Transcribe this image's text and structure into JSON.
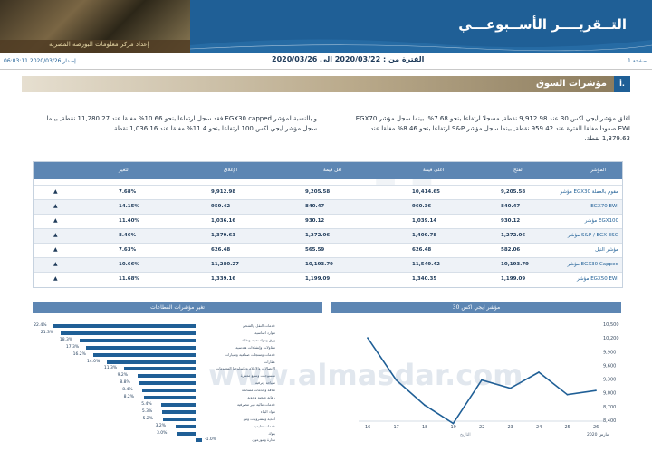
{
  "header": {
    "title": "التــقريــــر الأســبوعـــي",
    "center_name": "إعداد مركز معلومات البورصة المصرية"
  },
  "infobar": {
    "issue": "إصدار 2020/03/26 06:03:11",
    "period": "الفترة من : 2020/03/22 الى 2020/03/26",
    "page": "صفحة 1"
  },
  "section": {
    "num": "أ.",
    "title": "مؤشرات السوق"
  },
  "paragraphs": {
    "right": "اغلق مؤشر ايجي اكس 30 عند 9,912.98 نقطة, مسجلا ارتفاعا بنحو 7.68%. بينما سجل مؤشر EGX70 EWI صعودا مغلقا الفترة عند 959.42 نقطة, بينما سجل مؤشر S&P ارتفاعا بنحو 8.46% مغلقا عند 1,379.63 نقطة.",
    "left": "و بالنسبة لمؤشر EGX30 capped فقد سجل ارتفاعا بنحو 10.66% مغلقا عند 11,280.27 نقطة, بينما سجل مؤشر ايجي اكس 100 ارتفاعا بنحو 11.4% مغلقا عند 1,036.16 نقطة."
  },
  "table": {
    "headers": [
      "المؤشر",
      "الفتح",
      "اعلى قيمة",
      "اقل قيمة",
      "الإغلاق",
      "التغير"
    ],
    "rows": [
      {
        "name": "مؤشر EGX30 مقوم بالعملة",
        "open": "9,205.58",
        "high": "10,414.65",
        "low": "9,205.58",
        "close": "9,912.98",
        "change": "7.68%"
      },
      {
        "name": "EGX70 EWI",
        "open": "840.47",
        "high": "960.36",
        "low": "840.47",
        "close": "959.42",
        "change": "14.15%"
      },
      {
        "name": "مؤشر EGX100",
        "open": "930.12",
        "high": "1,039.14",
        "low": "930.12",
        "close": "1,036.16",
        "change": "11.40%"
      },
      {
        "name": "مؤشر S&P / EGX ESG",
        "open": "1,272.06",
        "high": "1,409.78",
        "low": "1,272.06",
        "close": "1,379.63",
        "change": "8.46%"
      },
      {
        "name": "مؤشر النيل",
        "open": "582.06",
        "high": "626.48",
        "low": "565.59",
        "close": "626.48",
        "change": "7.63%"
      },
      {
        "name": "مؤشر EGX30 Capped",
        "open": "10,193.79",
        "high": "11,549.42",
        "low": "10,193.79",
        "close": "11,280.27",
        "change": "10.66%"
      },
      {
        "name": "مؤشر EGX50 EWI",
        "open": "1,199.09",
        "high": "1,340.35",
        "low": "1,199.09",
        "close": "1,339.16",
        "change": "11.68%"
      }
    ],
    "arrow_icon": "up-triangle-icon"
  },
  "sectors_panel_title": "تغير مؤشرات القطاعات",
  "egx30_panel_title": "مؤشر ايجي اكس 30",
  "chart_data": [
    {
      "type": "bar",
      "title": "تغير مؤشرات القطاعات",
      "categories": [
        "خدمات النقل والشحن",
        "موارد أساسية",
        "ورق ومواد تعبئة وتغليف",
        "مقاولات وإنشاءات هندسية",
        "خدمات ومنتجات صناعية وسيارات",
        "عقارات",
        "الاتصالات والإعلام وتكنولوجيا المعلومات",
        "منسوجات وسلع معمرة",
        "سياحة وترفيه",
        "طاقة وخدمات مساندة",
        "رعاية صحية وأدوية",
        "خدمات مالية غير مصرفية",
        "مواد البناء",
        "أغذية ومشروبات وتبغ",
        "خدمات تعليمية",
        "بنوك",
        "تجارة وموزعون"
      ],
      "values": [
        22.4,
        21.3,
        18.3,
        17.3,
        16.2,
        14.0,
        11.3,
        9.2,
        8.8,
        8.4,
        8.2,
        5.4,
        5.3,
        5.2,
        3.2,
        3.0,
        -1.0
      ],
      "value_labels": [
        "22.4%",
        "21.3%",
        "18.3%",
        "17.3%",
        "16.2%",
        "14.0%",
        "11.3%",
        "9.2%",
        "8.8%",
        "8.4%",
        "8.2%",
        "5.4%",
        "5.3%",
        "5.2%",
        "3.2%",
        "3.0%",
        "-1.0%"
      ],
      "orientation": "horizontal",
      "color": "#1f5f96"
    },
    {
      "type": "line",
      "title": "مؤشر ايجي اكس 30",
      "categories": [
        "26",
        "25",
        "24",
        "23",
        "22",
        "19",
        "18",
        "17",
        "16"
      ],
      "values": [
        9050,
        8960,
        9450,
        9100,
        9280,
        8330,
        8730,
        9280,
        10200
      ],
      "yticks": [
        "10,500",
        "10,200",
        "9,900",
        "9,600",
        "9,300",
        "9,000",
        "8,700",
        "8,400"
      ],
      "ylim": [
        8400,
        10500
      ],
      "xlabel": "التاريخ",
      "footnote": "مارس 2020",
      "color": "#1f5f96"
    }
  ],
  "watermark": {
    "text": "المصدر",
    "url": "www.almasdar.com"
  }
}
